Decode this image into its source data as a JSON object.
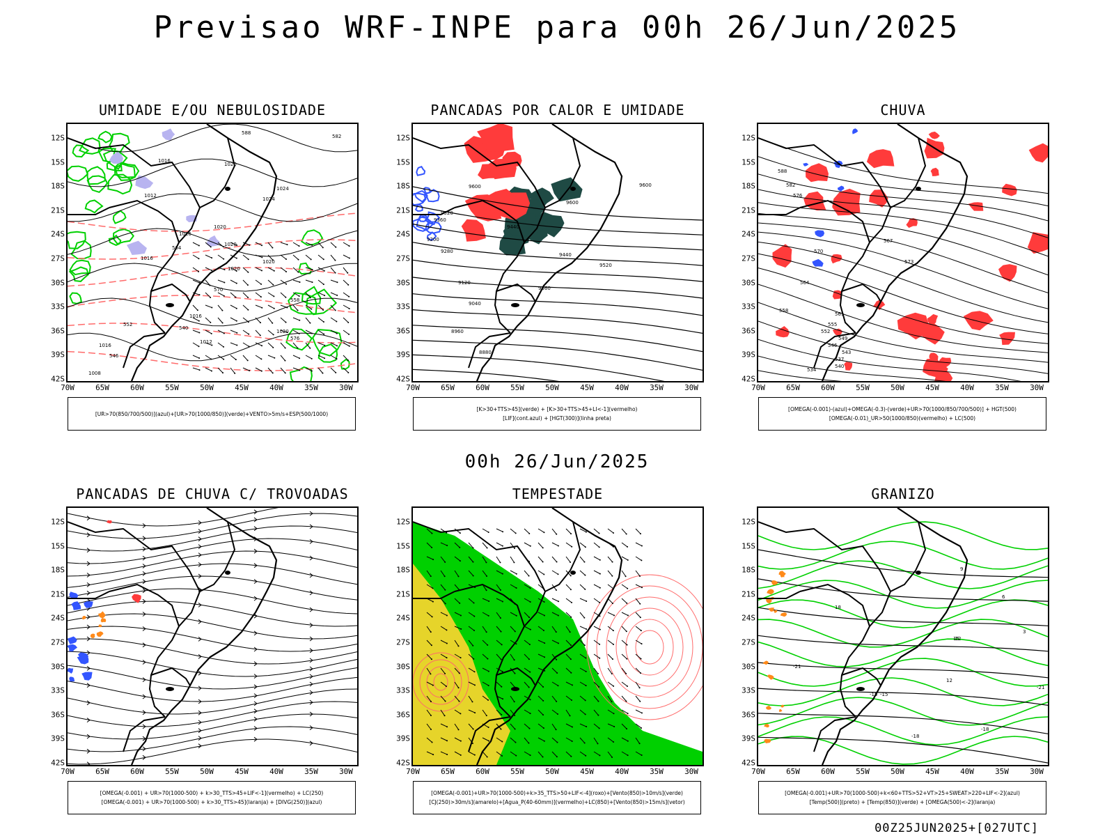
{
  "header": {
    "title": "Previsao WRF-INPE  para 00h 26/Jun/2025"
  },
  "mid_title": "00h 26/Jun/2025",
  "footer_stamp": "00Z25JUN2025+[027UTC]",
  "lat_ticks": [
    "12S",
    "15S",
    "18S",
    "21S",
    "24S",
    "27S",
    "30S",
    "33S",
    "36S",
    "39S",
    "42S"
  ],
  "lon_ticks": [
    "70W",
    "65W",
    "60W",
    "55W",
    "50W",
    "45W",
    "40W",
    "35W",
    "30W"
  ],
  "panels": [
    {
      "title": "UMIDADE E/OU NEBULOSIDADE",
      "legend": [
        "[UR>70(850/700/500)](azul)+[UR>70(1000/850)](verde)+VENTO>5m/s+ESP(500/1000)"
      ],
      "labels": [
        "1016",
        "1020",
        "1012",
        "1016",
        "1020",
        "1024",
        "1020",
        "1016",
        "1020",
        "1020",
        "1016",
        "1012",
        "1016",
        "1020",
        "1024",
        "1008",
        "564",
        "558",
        "552",
        "546",
        "540",
        "576",
        "570",
        "582",
        "588"
      ]
    },
    {
      "title": "PANCADAS POR CALOR E UMIDADE",
      "legend": [
        "[K>30+TTS>45](verde) + [K>30+TTS>45+LI<-1](vermelho)",
        "[LIF](cont.azul) + [HGT(300)](linha preta)"
      ],
      "labels": [
        "9600",
        "9520",
        "9440",
        "9360",
        "9280",
        "9200",
        "9120",
        "9040",
        "8960",
        "8880",
        "9600",
        "9520",
        "9440",
        "9360",
        "9600"
      ]
    },
    {
      "title": "CHUVA",
      "legend": [
        "[OMEGA(-0.001)-(azul)+OMEGA(-0.3)-(verde)+UR>70(1000/850/700/500)] + HGT(500)",
        "[OMEGA(-0.01)_UR>50(1000/850)(vermelho) + LC(500)"
      ],
      "labels": [
        "588",
        "582",
        "576",
        "570",
        "564",
        "558",
        "552",
        "546",
        "540",
        "534",
        "537",
        "543",
        "549",
        "555",
        "561",
        "567",
        "573"
      ]
    },
    {
      "title": "PANCADAS DE CHUVA C/ TROVOADAS",
      "legend": [
        "[OMEGA(-0.001) + UR>70(1000-500) + k>30_TTS>45+LIF<-1](vermelho) + LC(250)",
        "[OMEGA(-0.001) + UR>70(1000-500) + k>30_TTS>45](laranja) + [DIVG(250)](azul)"
      ],
      "labels": []
    },
    {
      "title": "TEMPESTADE",
      "legend": [
        "[OMEGA(-0.001)+UR>70(1000-500)+k>35_TTS>50+LIF<-4](roxo)+[Vento(850)>10m/s](verde)",
        "[CJ(250)>30m/s](amarelo)+[Agua_P(40-60mm)](vermelho)+LC(850)+[Vento(850)>15m/s](vetor)"
      ],
      "labels": []
    },
    {
      "title": "GRANIZO",
      "legend": [
        "[OMEGA(-0.001)+UR>70(1000-500)+k<60+TTS>52+VT>25+SWEAT>220+LIF<-2](azul)",
        "[Temp(500)](preto) + [Temp(850)](verde) + [OMEGA(500)<-2](laranja)"
      ],
      "labels": [
        "-21",
        "-18",
        "-15",
        "-12",
        "-15",
        "-18",
        "-21",
        "12",
        "15",
        "18",
        "9",
        "6",
        "3"
      ]
    }
  ],
  "colors": {
    "red": "#ff3b3b",
    "green": "#00c800",
    "dark_teal": "#1f4a44",
    "blue": "#3355ff",
    "lavender": "#b8b4f0",
    "yellow": "#e6d42a",
    "orange": "#ff8a1a",
    "pink": "#ff6a6a",
    "bright_green": "#00d000"
  }
}
